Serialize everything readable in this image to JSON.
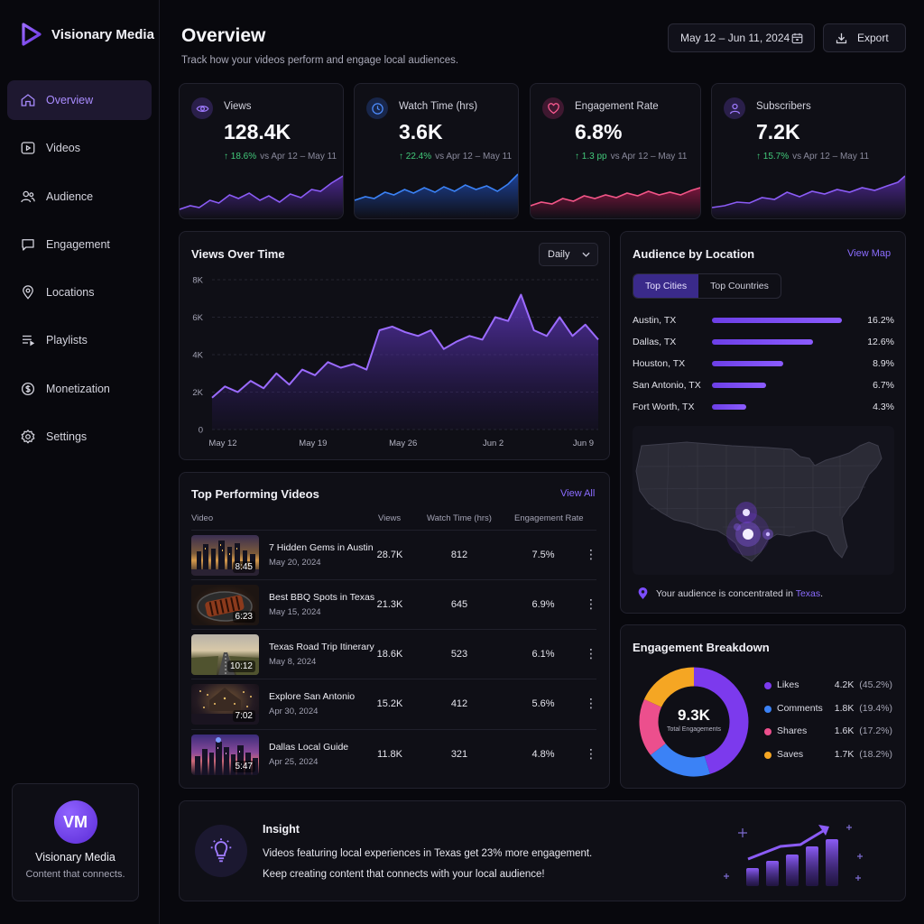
{
  "brand": {
    "name": "Visionary Media"
  },
  "nav": [
    {
      "label": "Overview",
      "icon": "home-icon",
      "active": true
    },
    {
      "label": "Videos",
      "icon": "video-icon"
    },
    {
      "label": "Audience",
      "icon": "users-icon"
    },
    {
      "label": "Engagement",
      "icon": "chat-icon"
    },
    {
      "label": "Locations",
      "icon": "pin-icon"
    },
    {
      "label": "Playlists",
      "icon": "list-icon"
    },
    {
      "label": "Monetization",
      "icon": "dollar-icon"
    },
    {
      "label": "Settings",
      "icon": "gear-icon"
    }
  ],
  "profile": {
    "initials": "VM",
    "name": "Visionary Media",
    "tagline": "Content that connects."
  },
  "header": {
    "title": "Overview",
    "subtitle": "Track how your videos perform and engage local audiences.",
    "date_range": "May 12 – Jun 11, 2024",
    "export_label": "Export"
  },
  "kpis": [
    {
      "label": "Views",
      "value": "128.4K",
      "delta": "↑ 18.6%",
      "compare": "vs Apr 12 – May 11",
      "icon": "eye-icon",
      "color": "#8b5cf6"
    },
    {
      "label": "Watch Time (hrs)",
      "value": "3.6K",
      "delta": "↑ 22.4%",
      "compare": "vs Apr 12 – May 11",
      "icon": "clock-icon",
      "color": "#3b82f6"
    },
    {
      "label": "Engagement Rate",
      "value": "6.8%",
      "delta": "↑ 1.3 pp",
      "compare": "vs Apr 12 – May 11",
      "icon": "heart-icon",
      "color": "#f25587"
    },
    {
      "label": "Subscribers",
      "value": "7.2K",
      "delta": "↑ 15.7%",
      "compare": "vs Apr 12 – May 11",
      "icon": "user-icon",
      "color": "#8b5cf6"
    }
  ],
  "views_over_time": {
    "title": "Views Over Time",
    "granularity": "Daily",
    "chart_data": {
      "type": "area",
      "x": [
        "May 12",
        "May 13",
        "May 14",
        "May 15",
        "May 16",
        "May 17",
        "May 18",
        "May 19",
        "May 20",
        "May 21",
        "May 22",
        "May 23",
        "May 24",
        "May 25",
        "May 26",
        "May 27",
        "May 28",
        "May 29",
        "May 30",
        "May 31",
        "Jun 1",
        "Jun 2",
        "Jun 3",
        "Jun 4",
        "Jun 5",
        "Jun 6",
        "Jun 7",
        "Jun 8",
        "Jun 9",
        "Jun 10",
        "Jun 11"
      ],
      "y": [
        1700,
        2300,
        2000,
        2600,
        2200,
        3000,
        2400,
        3200,
        2900,
        3600,
        3300,
        3500,
        3200,
        5300,
        5500,
        5200,
        5000,
        5300,
        4300,
        4700,
        5000,
        4800,
        6000,
        5800,
        7200,
        5300,
        5000,
        6000,
        5000,
        5600,
        4800
      ],
      "ylim": [
        0,
        8000
      ],
      "yticks": [
        "0",
        "2K",
        "4K",
        "6K",
        "8K"
      ],
      "xticks": [
        "May 12",
        "May 19",
        "May 26",
        "Jun 2",
        "Jun 9"
      ],
      "grid": true
    }
  },
  "top_videos": {
    "title": "Top Performing Videos",
    "view_all": "View All",
    "columns": [
      "Video",
      "Views",
      "Watch Time (hrs)",
      "Engagement Rate"
    ],
    "rows": [
      {
        "title": "7 Hidden Gems in Austin",
        "date": "May 20, 2024",
        "duration": "8:45",
        "views": "28.7K",
        "watch": "812",
        "rate": "7.5%"
      },
      {
        "title": "Best BBQ Spots in Texas",
        "date": "May 15, 2024",
        "duration": "6:23",
        "views": "21.3K",
        "watch": "645",
        "rate": "6.9%"
      },
      {
        "title": "Texas Road Trip Itinerary",
        "date": "May 8, 2024",
        "duration": "10:12",
        "views": "18.6K",
        "watch": "523",
        "rate": "6.1%"
      },
      {
        "title": "Explore San Antonio",
        "date": "Apr 30, 2024",
        "duration": "7:02",
        "views": "15.2K",
        "watch": "412",
        "rate": "5.6%"
      },
      {
        "title": "Dallas Local Guide",
        "date": "Apr 25, 2024",
        "duration": "5:47",
        "views": "11.8K",
        "watch": "321",
        "rate": "4.8%"
      }
    ]
  },
  "audience": {
    "title": "Audience by Location",
    "view_map": "View Map",
    "tabs": [
      "Top Cities",
      "Top Countries"
    ],
    "cities": [
      {
        "name": "Austin, TX",
        "pct": "16.2%",
        "value": 16.2
      },
      {
        "name": "Dallas, TX",
        "pct": "12.6%",
        "value": 12.6
      },
      {
        "name": "Houston, TX",
        "pct": "8.9%",
        "value": 8.9
      },
      {
        "name": "San Antonio, TX",
        "pct": "6.7%",
        "value": 6.7
      },
      {
        "name": "Fort Worth, TX",
        "pct": "4.3%",
        "value": 4.3
      }
    ],
    "note_prefix": "Your audience is concentrated in ",
    "note_place": "Texas",
    "note_suffix": "."
  },
  "engagement": {
    "title": "Engagement Breakdown",
    "total": "9.3K",
    "total_label": "Total Engagements",
    "chart_data": {
      "type": "pie",
      "labels": [
        "Likes",
        "Comments",
        "Shares",
        "Saves"
      ],
      "values": [
        45.2,
        19.4,
        17.2,
        18.2
      ],
      "counts": [
        "4.2K",
        "1.8K",
        "1.6K",
        "1.7K"
      ],
      "pcts": [
        "(45.2%)",
        "(19.4%)",
        "(17.2%)",
        "(18.2%)"
      ],
      "colors": [
        "#7c3aed",
        "#3b82f6",
        "#ec4f8d",
        "#f5a623"
      ]
    }
  },
  "insight": {
    "title": "Insight",
    "line1": "Videos featuring local experiences in Texas get 23% more engagement.",
    "line2": "Keep creating content that connects with your local audience!"
  }
}
